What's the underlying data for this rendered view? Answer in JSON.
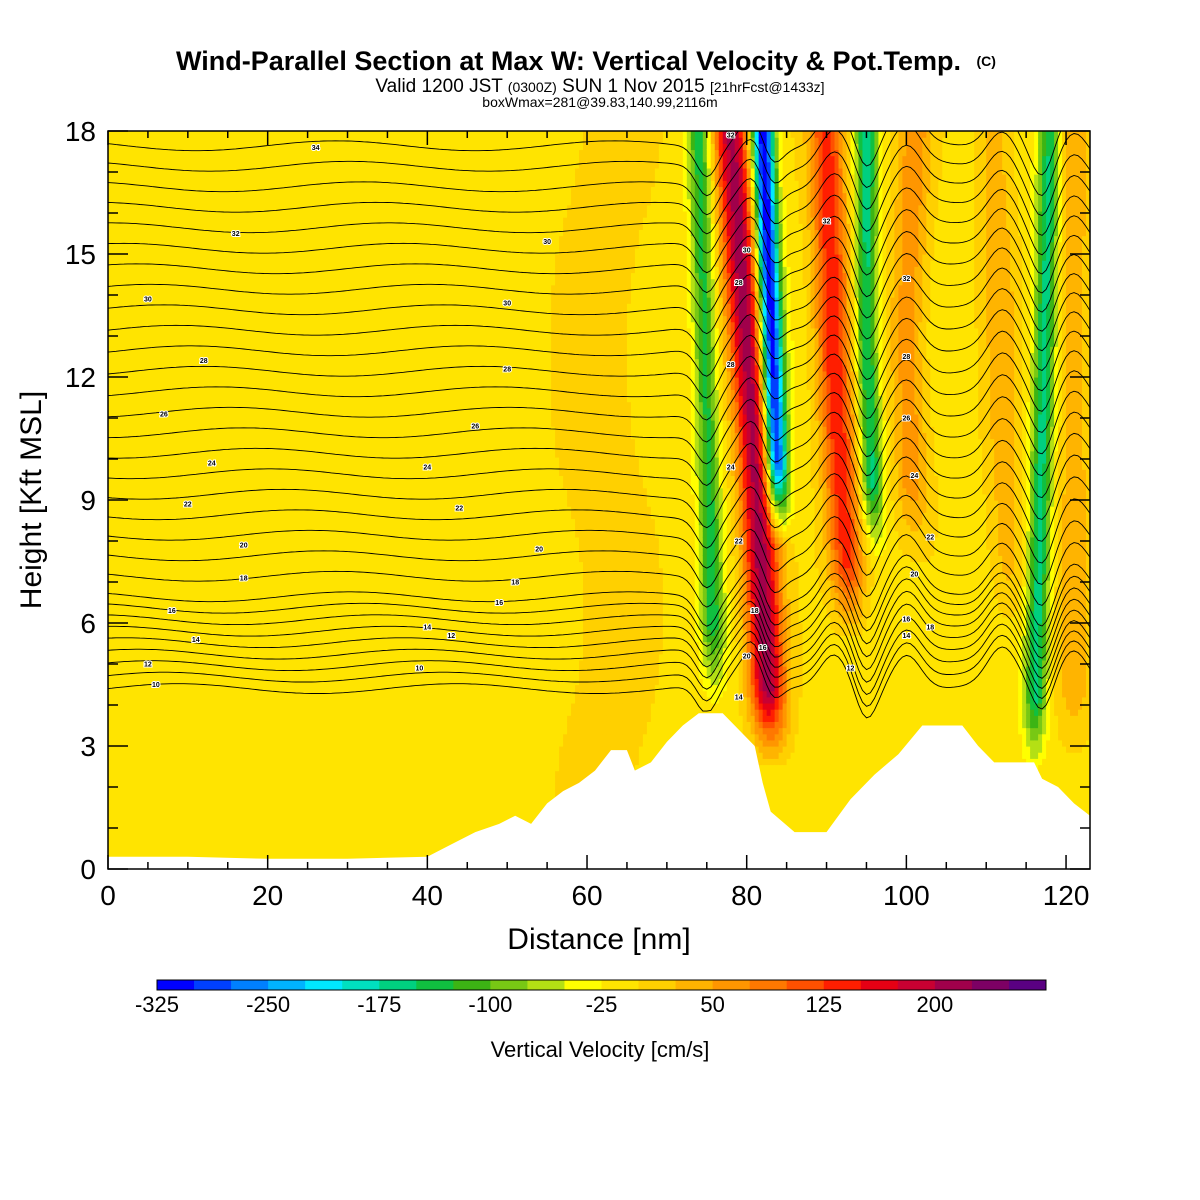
{
  "chart_data": {
    "type": "heatmap",
    "title": "Wind-Parallel Section at Max W: Vertical Velocity & Pot.Temp.",
    "title_mark": "(C)",
    "subtitle": {
      "prefix": "Valid 1200 JST",
      "utc": "(0300Z)",
      "date": "SUN 1 Nov 2015",
      "forecast": "[21hrFcst@1433z]"
    },
    "annotation": "boxWmax=281@39.83,140.99,2116m",
    "xlabel": "Distance [nm]",
    "ylabel": "Height [Kft MSL]",
    "xlim": [
      0,
      123
    ],
    "ylim": [
      0,
      18
    ],
    "x_ticks": [
      "0",
      "20",
      "40",
      "60",
      "80",
      "100",
      "120"
    ],
    "y_ticks": [
      "0",
      "3",
      "6",
      "9",
      "12",
      "15",
      "18"
    ],
    "colorbar": {
      "label": "Vertical Velocity [cm/s]",
      "min": -325,
      "step": 25,
      "tick_labels": [
        "-325",
        "-250",
        "-175",
        "-100",
        "-25",
        "50",
        "125",
        "200"
      ],
      "colors": [
        "#0000ff",
        "#0040ff",
        "#0080ff",
        "#00b4ff",
        "#00e8ff",
        "#00e0c0",
        "#00d080",
        "#10c040",
        "#3cb414",
        "#78c814",
        "#b4e014",
        "#ffff00",
        "#ffe400",
        "#ffd000",
        "#ffb400",
        "#ff9600",
        "#ff7800",
        "#ff5000",
        "#ff1e00",
        "#e60014",
        "#c80032",
        "#a0004b",
        "#7d0064",
        "#5a0082"
      ]
    },
    "terrain_kft": [
      [
        0,
        0.3
      ],
      [
        10,
        0.3
      ],
      [
        20,
        0.25
      ],
      [
        30,
        0.25
      ],
      [
        40,
        0.3
      ],
      [
        43,
        0.6
      ],
      [
        46,
        0.9
      ],
      [
        49,
        1.1
      ],
      [
        51,
        1.3
      ],
      [
        53,
        1.1
      ],
      [
        55,
        1.6
      ],
      [
        57,
        1.9
      ],
      [
        59,
        2.1
      ],
      [
        61,
        2.4
      ],
      [
        63,
        2.9
      ],
      [
        65,
        2.9
      ],
      [
        66,
        2.4
      ],
      [
        68,
        2.6
      ],
      [
        70,
        3.1
      ],
      [
        72,
        3.5
      ],
      [
        74,
        3.8
      ],
      [
        77,
        3.8
      ],
      [
        79,
        3.4
      ],
      [
        81,
        3.0
      ],
      [
        82,
        2.1
      ],
      [
        83,
        1.4
      ],
      [
        86,
        0.9
      ],
      [
        90,
        0.9
      ],
      [
        93,
        1.7
      ],
      [
        96,
        2.3
      ],
      [
        99,
        2.8
      ],
      [
        102,
        3.5
      ],
      [
        107,
        3.5
      ],
      [
        109,
        3.0
      ],
      [
        111,
        2.6
      ],
      [
        116,
        2.6
      ],
      [
        117,
        2.2
      ],
      [
        119,
        2.0
      ],
      [
        121,
        1.6
      ],
      [
        123,
        1.3
      ]
    ],
    "updraft_bands": [
      {
        "x_top": 78,
        "x_mid": 81,
        "x_bottom": 83,
        "y_bottom": 3.0,
        "w_max": 225
      },
      {
        "x_top": 90,
        "x_mid": 91,
        "x_bottom": 93,
        "y_bottom": 6.0,
        "w_max": 150
      },
      {
        "x_top": 101,
        "x_mid": 100,
        "x_bottom": 101,
        "y_bottom": 8.0,
        "w_max": 75
      },
      {
        "x_top": 111,
        "x_mid": 112,
        "x_bottom": 113,
        "y_bottom": 6.0,
        "w_max": 50
      },
      {
        "x_top": 121,
        "x_mid": 121,
        "x_bottom": 121,
        "y_bottom": 3.0,
        "w_max": 50
      }
    ],
    "downdraft_bands": [
      {
        "x_top": 82,
        "x_mid": 83,
        "x_bottom": 84,
        "y_bottom": 8.5,
        "w_min": -325
      },
      {
        "x_top": 95,
        "x_mid": 95,
        "x_bottom": 96,
        "y_bottom": 8.0,
        "w_min": -150
      },
      {
        "x_top": 118,
        "x_mid": 117,
        "x_bottom": 116,
        "y_bottom": 2.8,
        "w_min": -150
      },
      {
        "x_top": 74,
        "x_mid": 75,
        "x_bottom": 76,
        "y_bottom": 4.5,
        "w_min": -125
      }
    ],
    "contour_labels": [
      {
        "text": "34",
        "x": 26,
        "y": 17.6
      },
      {
        "text": "32",
        "x": 16,
        "y": 15.5
      },
      {
        "text": "30",
        "x": 5,
        "y": 13.9
      },
      {
        "text": "28",
        "x": 12,
        "y": 12.4
      },
      {
        "text": "26",
        "x": 7,
        "y": 11.1
      },
      {
        "text": "24",
        "x": 13,
        "y": 9.9
      },
      {
        "text": "22",
        "x": 10,
        "y": 8.9
      },
      {
        "text": "20",
        "x": 17,
        "y": 7.9
      },
      {
        "text": "18",
        "x": 17,
        "y": 7.1
      },
      {
        "text": "16",
        "x": 8,
        "y": 6.3
      },
      {
        "text": "14",
        "x": 11,
        "y": 5.6
      },
      {
        "text": "12",
        "x": 5,
        "y": 5.0
      },
      {
        "text": "10",
        "x": 6,
        "y": 4.5
      },
      {
        "text": "30",
        "x": 55,
        "y": 15.3
      },
      {
        "text": "30",
        "x": 50,
        "y": 13.8
      },
      {
        "text": "28",
        "x": 50,
        "y": 12.2
      },
      {
        "text": "26",
        "x": 46,
        "y": 10.8
      },
      {
        "text": "24",
        "x": 40,
        "y": 9.8
      },
      {
        "text": "22",
        "x": 44,
        "y": 8.8
      },
      {
        "text": "20",
        "x": 54,
        "y": 7.8
      },
      {
        "text": "18",
        "x": 51,
        "y": 7.0
      },
      {
        "text": "16",
        "x": 49,
        "y": 6.5
      },
      {
        "text": "14",
        "x": 40,
        "y": 5.9
      },
      {
        "text": "12",
        "x": 43,
        "y": 5.7
      },
      {
        "text": "10",
        "x": 39,
        "y": 4.9
      },
      {
        "text": "32",
        "x": 78,
        "y": 17.9
      },
      {
        "text": "32",
        "x": 90,
        "y": 15.8
      },
      {
        "text": "30",
        "x": 80,
        "y": 15.1
      },
      {
        "text": "28",
        "x": 79,
        "y": 14.3
      },
      {
        "text": "28",
        "x": 78,
        "y": 12.3
      },
      {
        "text": "24",
        "x": 78,
        "y": 9.8
      },
      {
        "text": "22",
        "x": 79,
        "y": 8.0
      },
      {
        "text": "18",
        "x": 81,
        "y": 6.3
      },
      {
        "text": "16",
        "x": 82,
        "y": 5.4
      },
      {
        "text": "20",
        "x": 80,
        "y": 5.2
      },
      {
        "text": "14",
        "x": 79,
        "y": 4.2
      },
      {
        "text": "32",
        "x": 100,
        "y": 14.4
      },
      {
        "text": "28",
        "x": 100,
        "y": 12.5
      },
      {
        "text": "26",
        "x": 100,
        "y": 11.0
      },
      {
        "text": "24",
        "x": 101,
        "y": 9.6
      },
      {
        "text": "22",
        "x": 103,
        "y": 8.1
      },
      {
        "text": "20",
        "x": 101,
        "y": 7.2
      },
      {
        "text": "18",
        "x": 103,
        "y": 5.9
      },
      {
        "text": "16",
        "x": 100,
        "y": 6.1
      },
      {
        "text": "14",
        "x": 100,
        "y": 5.7
      },
      {
        "text": "12",
        "x": 93,
        "y": 4.9
      }
    ]
  }
}
